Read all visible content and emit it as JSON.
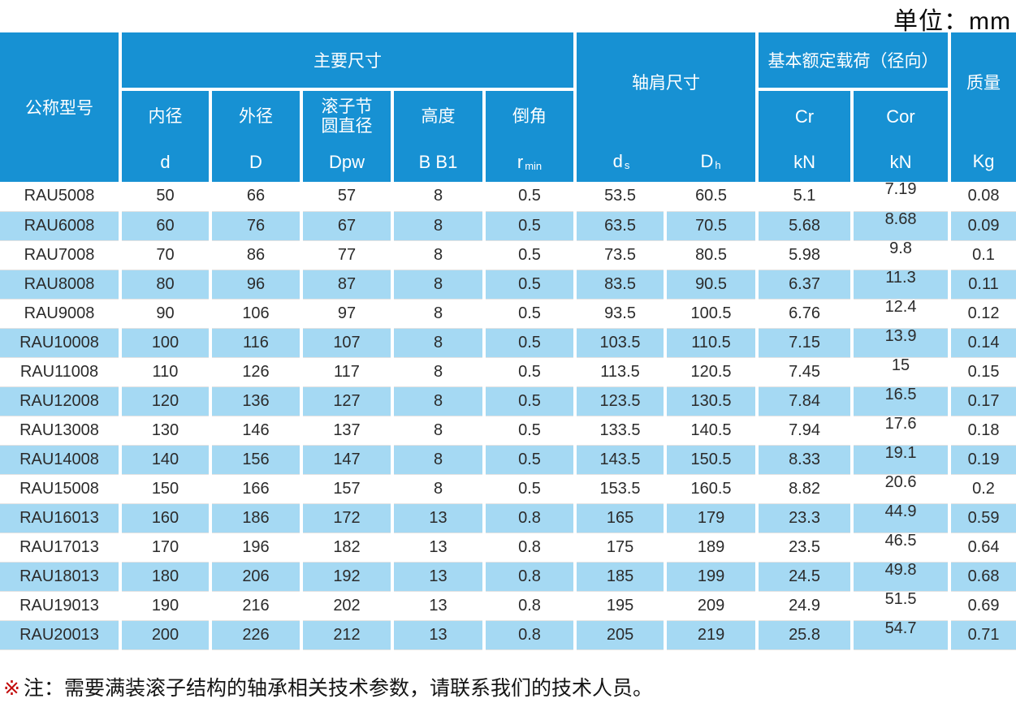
{
  "page": {
    "unit_label": "单位：mm"
  },
  "note": {
    "marker": "※",
    "text": "注：需要满装滚子结构的轴承相关技术参数，请联系我们的技术人员。"
  },
  "colors": {
    "header_blue": "#1791d3",
    "row_alt_blue": "#a5d9f3",
    "note_marker_red": "#c30d0d",
    "body_text": "#2b2b2b"
  },
  "table": {
    "columns": [
      "model",
      "bore-d",
      "outer-D",
      "pitch-Dpw",
      "height-B-B1",
      "chamfer-rmin",
      "shoulder-ds",
      "shoulder-Dh",
      "load-Cr",
      "load-Cor",
      "mass-Kg"
    ],
    "header": {
      "model": "公称型号",
      "main_dims": "主要尺寸",
      "shoulder_dims": "轴肩尺寸",
      "load_rating": "基本额定载荷（径向）",
      "mass": "质量",
      "bore": {
        "label": "内径",
        "symbol": "d"
      },
      "outer": {
        "label": "外径",
        "symbol": "D"
      },
      "pitch": {
        "label": "滚子节\n圆直径",
        "symbol": "Dpw"
      },
      "height": {
        "label": "高度",
        "symbol": "B B1"
      },
      "chamfer": {
        "label": "倒角",
        "symbol": "r",
        "symbol_sub": "min"
      },
      "shoulder_ds": {
        "symbol": "d",
        "sub": "s"
      },
      "shoulder_dh": {
        "symbol": "D",
        "sub": "h"
      },
      "cr": {
        "label": "Cr",
        "unit": "kN"
      },
      "cor": {
        "label": "Cor",
        "unit": "kN"
      },
      "mass_unit": "Kg"
    },
    "rows": [
      [
        "RAU5008",
        "50",
        "66",
        "57",
        "8",
        "0.5",
        "53.5",
        "60.5",
        "5.1",
        "7.19",
        "0.08"
      ],
      [
        "RAU6008",
        "60",
        "76",
        "67",
        "8",
        "0.5",
        "63.5",
        "70.5",
        "5.68",
        "8.68",
        "0.09"
      ],
      [
        "RAU7008",
        "70",
        "86",
        "77",
        "8",
        "0.5",
        "73.5",
        "80.5",
        "5.98",
        "9.8",
        "0.1"
      ],
      [
        "RAU8008",
        "80",
        "96",
        "87",
        "8",
        "0.5",
        "83.5",
        "90.5",
        "6.37",
        "11.3",
        "0.11"
      ],
      [
        "RAU9008",
        "90",
        "106",
        "97",
        "8",
        "0.5",
        "93.5",
        "100.5",
        "6.76",
        "12.4",
        "0.12"
      ],
      [
        "RAU10008",
        "100",
        "116",
        "107",
        "8",
        "0.5",
        "103.5",
        "110.5",
        "7.15",
        "13.9",
        "0.14"
      ],
      [
        "RAU11008",
        "110",
        "126",
        "117",
        "8",
        "0.5",
        "113.5",
        "120.5",
        "7.45",
        "15",
        "0.15"
      ],
      [
        "RAU12008",
        "120",
        "136",
        "127",
        "8",
        "0.5",
        "123.5",
        "130.5",
        "7.84",
        "16.5",
        "0.17"
      ],
      [
        "RAU13008",
        "130",
        "146",
        "137",
        "8",
        "0.5",
        "133.5",
        "140.5",
        "7.94",
        "17.6",
        "0.18"
      ],
      [
        "RAU14008",
        "140",
        "156",
        "147",
        "8",
        "0.5",
        "143.5",
        "150.5",
        "8.33",
        "19.1",
        "0.19"
      ],
      [
        "RAU15008",
        "150",
        "166",
        "157",
        "8",
        "0.5",
        "153.5",
        "160.5",
        "8.82",
        "20.6",
        "0.2"
      ],
      [
        "RAU16013",
        "160",
        "186",
        "172",
        "13",
        "0.8",
        "165",
        "179",
        "23.3",
        "44.9",
        "0.59"
      ],
      [
        "RAU17013",
        "170",
        "196",
        "182",
        "13",
        "0.8",
        "175",
        "189",
        "23.5",
        "46.5",
        "0.64"
      ],
      [
        "RAU18013",
        "180",
        "206",
        "192",
        "13",
        "0.8",
        "185",
        "199",
        "24.5",
        "49.8",
        "0.68"
      ],
      [
        "RAU19013",
        "190",
        "216",
        "202",
        "13",
        "0.8",
        "195",
        "209",
        "24.9",
        "51.5",
        "0.69"
      ],
      [
        "RAU20013",
        "200",
        "226",
        "212",
        "13",
        "0.8",
        "205",
        "219",
        "25.8",
        "54.7",
        "0.71"
      ]
    ]
  }
}
